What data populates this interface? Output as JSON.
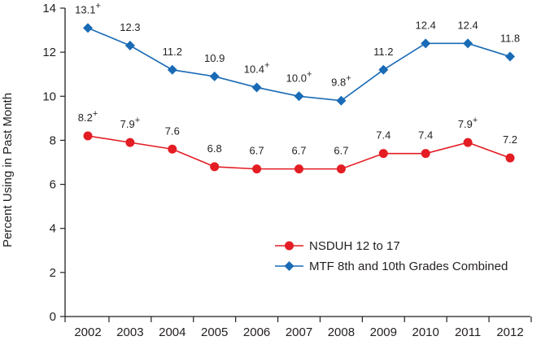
{
  "chart_data": {
    "type": "line",
    "title": "",
    "xlabel": "",
    "ylabel": "Percent Using in Past Month",
    "x": [
      "2002",
      "2003",
      "2004",
      "2005",
      "2006",
      "2007",
      "2008",
      "2009",
      "2010",
      "2011",
      "2012"
    ],
    "yticks": [
      "0",
      "2",
      "4",
      "6",
      "8",
      "10",
      "12",
      "14"
    ],
    "ylim": [
      0,
      14
    ],
    "grid": false,
    "legend_position": "bottom-right",
    "series": [
      {
        "name": "NSDUH 12 to 17",
        "color": "#e31d23",
        "marker": "circle",
        "values": [
          8.2,
          7.9,
          7.6,
          6.8,
          6.7,
          6.7,
          6.7,
          7.4,
          7.4,
          7.9,
          7.2
        ],
        "labels": [
          "8.2",
          "7.9",
          "7.6",
          "6.8",
          "6.7",
          "6.7",
          "6.7",
          "7.4",
          "7.4",
          "7.9",
          "7.2"
        ],
        "significance_marks": [
          "+",
          "+",
          "",
          "",
          "",
          "",
          "",
          "",
          "",
          "+",
          ""
        ]
      },
      {
        "name": "MTF 8th and 10th Grades Combined",
        "color": "#1a6bb5",
        "marker": "diamond",
        "values": [
          13.1,
          12.3,
          11.2,
          10.9,
          10.4,
          10.0,
          9.8,
          11.2,
          12.4,
          12.4,
          11.8
        ],
        "labels": [
          "13.1",
          "12.3",
          "11.2",
          "10.9",
          "10.4",
          "10.0",
          "9.8",
          "11.2",
          "12.4",
          "12.4",
          "11.8"
        ],
        "significance_marks": [
          "+",
          "",
          "",
          "",
          "+",
          "+",
          "+",
          "",
          "",
          "",
          ""
        ]
      }
    ]
  }
}
